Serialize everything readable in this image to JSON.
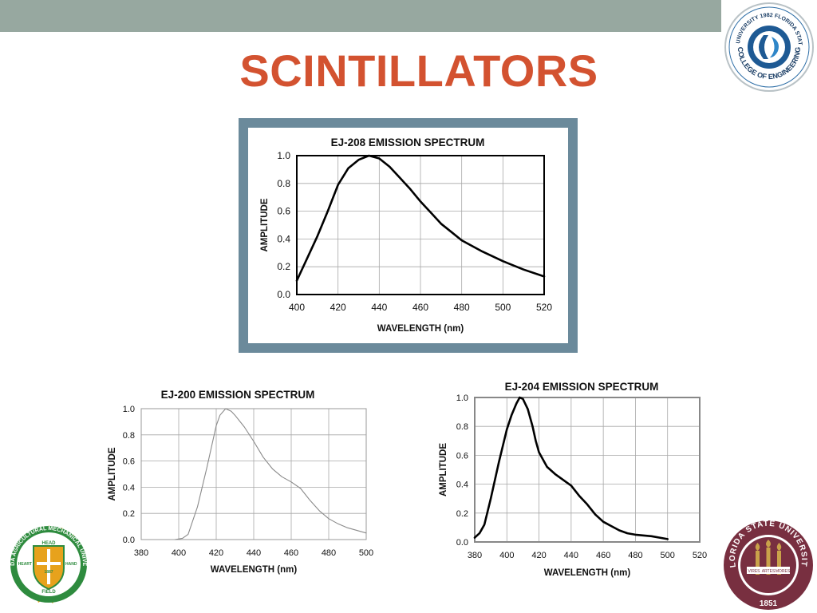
{
  "slide": {
    "title": "SCINTILLATORS"
  },
  "logos": {
    "coe": {
      "top_text": "FLORIDA A&M UNIVERSITY 1982 FLORIDA STATE UNIVERSITY",
      "bottom_text": "COLLEGE OF ENGINEERING"
    },
    "famu": {
      "ring_text": "FLORIDA AGRICULTURAL MECHANICAL UNIVERSITY",
      "head": "HEAD",
      "heart": "HEART",
      "hand": "HAND",
      "field": "FIELD",
      "year": "1887"
    },
    "fsu": {
      "ring_text": "FLORIDA STATE UNIVERSITY",
      "year": "1851",
      "vires": "VIRES",
      "artes": "ARTES",
      "mores": "MORES"
    }
  },
  "colors": {
    "accent": "#d35230",
    "bar": "#97a8a0",
    "frame": "#6b8a9b"
  },
  "chart_data": [
    {
      "id": "ej208",
      "type": "line",
      "title": "EJ-208 EMISSION SPECTRUM",
      "xlabel": "WAVELENGTH  (nm)",
      "ylabel": "AMPLITUDE",
      "xlim": [
        400,
        520
      ],
      "ylim": [
        0,
        1
      ],
      "xticks": [
        "400",
        "420",
        "440",
        "460",
        "480",
        "500",
        "520"
      ],
      "yticks": [
        "0.0",
        "0.2",
        "0.4",
        "0.6",
        "0.8",
        "1.0"
      ],
      "grid": true,
      "series": [
        {
          "x": [
            400,
            405,
            410,
            415,
            420,
            425,
            430,
            435,
            440,
            445,
            450,
            455,
            460,
            465,
            470,
            475,
            480,
            490,
            500,
            510,
            520
          ],
          "y": [
            0.1,
            0.26,
            0.42,
            0.6,
            0.79,
            0.91,
            0.97,
            1.0,
            0.98,
            0.92,
            0.84,
            0.76,
            0.67,
            0.59,
            0.51,
            0.45,
            0.39,
            0.31,
            0.24,
            0.18,
            0.13
          ]
        }
      ]
    },
    {
      "id": "ej200",
      "type": "line",
      "title": "EJ-200 EMISSION SPECTRUM",
      "xlabel": "WAVELENGTH (nm)",
      "ylabel": "AMPLITUDE",
      "xlim": [
        380,
        500
      ],
      "ylim": [
        0,
        1
      ],
      "xticks": [
        "380",
        "400",
        "420",
        "440",
        "460",
        "480",
        "500"
      ],
      "yticks": [
        "0.0",
        "0.2",
        "0.4",
        "0.6",
        "0.8",
        "1.0"
      ],
      "grid": true,
      "series": [
        {
          "x": [
            398,
            402,
            405,
            410,
            415,
            420,
            422,
            425,
            428,
            430,
            435,
            440,
            445,
            450,
            455,
            460,
            465,
            470,
            475,
            480,
            485,
            490,
            500
          ],
          "y": [
            0.0,
            0.01,
            0.04,
            0.25,
            0.55,
            0.87,
            0.95,
            1.0,
            0.98,
            0.95,
            0.86,
            0.75,
            0.63,
            0.54,
            0.48,
            0.44,
            0.39,
            0.3,
            0.22,
            0.16,
            0.12,
            0.09,
            0.05
          ]
        }
      ]
    },
    {
      "id": "ej204",
      "type": "line",
      "title": "EJ-204 EMISSION SPECTRUM",
      "xlabel": "WAVELENGTH (nm)",
      "ylabel": "AMPLITUDE",
      "xlim": [
        380,
        520
      ],
      "ylim": [
        0,
        1
      ],
      "xticks": [
        "380",
        "400",
        "420",
        "440",
        "460",
        "480",
        "500",
        "520"
      ],
      "yticks": [
        "0.0",
        "0.2",
        "0.4",
        "0.6",
        "0.8",
        "1.0"
      ],
      "grid": true,
      "series": [
        {
          "x": [
            380,
            383,
            386,
            390,
            395,
            400,
            403,
            406,
            408,
            410,
            413,
            416,
            418,
            420,
            425,
            430,
            440,
            445,
            450,
            455,
            460,
            465,
            470,
            475,
            480,
            490,
            500
          ],
          "y": [
            0.03,
            0.06,
            0.12,
            0.3,
            0.55,
            0.78,
            0.88,
            0.96,
            1.0,
            0.99,
            0.92,
            0.8,
            0.7,
            0.62,
            0.52,
            0.47,
            0.39,
            0.32,
            0.26,
            0.19,
            0.14,
            0.11,
            0.08,
            0.06,
            0.05,
            0.04,
            0.02
          ]
        }
      ]
    }
  ]
}
